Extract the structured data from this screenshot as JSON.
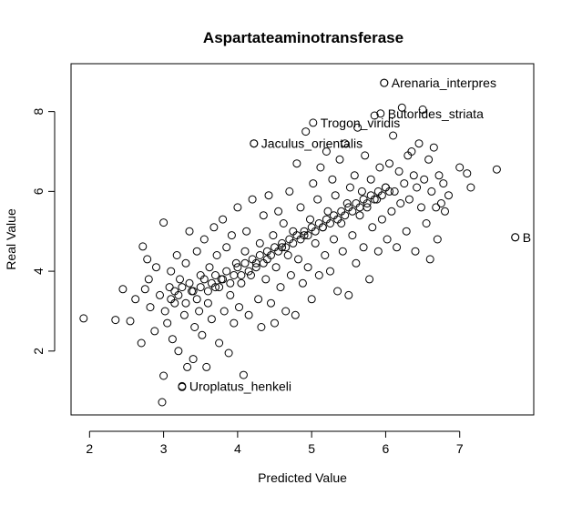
{
  "chart_data": {
    "type": "scatter",
    "title": "Aspartateaminotransferase",
    "xlabel": "Predicted Value",
    "ylabel": "Real Value",
    "xlim": [
      1.75,
      8.0
    ],
    "ylim": [
      0.4,
      9.2
    ],
    "xticks": [
      "2",
      "3",
      "4",
      "5",
      "6",
      "7"
    ],
    "yticks": [
      "2",
      "4",
      "6",
      "8"
    ],
    "grid": false,
    "legend": "none",
    "annotations": [
      {
        "label": "Arenaria_interpres",
        "x": 5.98,
        "y": 8.72
      },
      {
        "label": "Butorides_striata",
        "x": 5.93,
        "y": 7.95
      },
      {
        "label": "Trogon_viridis",
        "x": 5.02,
        "y": 7.72
      },
      {
        "label": "Jaculus_orientalis",
        "x": 4.22,
        "y": 7.2
      },
      {
        "label": "B",
        "x": 7.75,
        "y": 4.85
      },
      {
        "label": "Uroplatus_henkeli",
        "x": 3.25,
        "y": 1.12
      }
    ],
    "points": [
      [
        1.92,
        2.82
      ],
      [
        2.35,
        2.78
      ],
      [
        2.55,
        2.75
      ],
      [
        2.45,
        3.55
      ],
      [
        2.62,
        3.3
      ],
      [
        2.7,
        2.2
      ],
      [
        2.75,
        3.55
      ],
      [
        2.72,
        4.62
      ],
      [
        2.78,
        4.3
      ],
      [
        2.8,
        3.8
      ],
      [
        2.82,
        3.1
      ],
      [
        2.88,
        2.5
      ],
      [
        2.9,
        4.1
      ],
      [
        2.95,
        3.4
      ],
      [
        2.98,
        0.72
      ],
      [
        3.0,
        1.38
      ],
      [
        3.0,
        5.22
      ],
      [
        3.02,
        3.0
      ],
      [
        3.05,
        2.7
      ],
      [
        3.08,
        3.6
      ],
      [
        3.1,
        4.0
      ],
      [
        3.12,
        2.3
      ],
      [
        3.15,
        3.2
      ],
      [
        3.18,
        4.4
      ],
      [
        3.2,
        2.0
      ],
      [
        3.22,
        3.8
      ],
      [
        3.25,
        1.1
      ],
      [
        3.28,
        2.9
      ],
      [
        3.3,
        4.2
      ],
      [
        3.32,
        1.6
      ],
      [
        3.35,
        5.0
      ],
      [
        3.38,
        3.5
      ],
      [
        3.4,
        1.8
      ],
      [
        3.42,
        2.6
      ],
      [
        3.45,
        4.5
      ],
      [
        3.48,
        3.0
      ],
      [
        3.5,
        3.9
      ],
      [
        3.52,
        2.4
      ],
      [
        3.55,
        4.8
      ],
      [
        3.58,
        1.6
      ],
      [
        3.6,
        3.2
      ],
      [
        3.62,
        4.1
      ],
      [
        3.65,
        2.8
      ],
      [
        3.68,
        5.1
      ],
      [
        3.7,
        3.6
      ],
      [
        3.72,
        4.4
      ],
      [
        3.75,
        2.2
      ],
      [
        3.78,
        3.8
      ],
      [
        3.8,
        5.3
      ],
      [
        3.82,
        3.0
      ],
      [
        3.85,
        4.6
      ],
      [
        3.88,
        1.95
      ],
      [
        3.9,
        3.4
      ],
      [
        3.92,
        4.9
      ],
      [
        3.95,
        2.7
      ],
      [
        3.98,
        4.2
      ],
      [
        4.0,
        5.6
      ],
      [
        4.02,
        3.1
      ],
      [
        4.05,
        3.7
      ],
      [
        4.08,
        1.4
      ],
      [
        4.1,
        4.5
      ],
      [
        4.12,
        5.0
      ],
      [
        4.15,
        2.9
      ],
      [
        4.18,
        3.9
      ],
      [
        4.2,
        5.8
      ],
      [
        4.22,
        7.2
      ],
      [
        4.25,
        4.2
      ],
      [
        4.28,
        3.3
      ],
      [
        4.3,
        4.7
      ],
      [
        4.32,
        2.6
      ],
      [
        4.35,
        5.4
      ],
      [
        4.38,
        3.8
      ],
      [
        4.4,
        4.3
      ],
      [
        4.42,
        5.9
      ],
      [
        4.45,
        3.2
      ],
      [
        4.48,
        4.9
      ],
      [
        4.5,
        2.7
      ],
      [
        4.52,
        4.1
      ],
      [
        4.55,
        5.5
      ],
      [
        4.58,
        3.6
      ],
      [
        4.6,
        4.6
      ],
      [
        4.62,
        5.2
      ],
      [
        4.65,
        3.0
      ],
      [
        4.68,
        4.4
      ],
      [
        4.7,
        6.0
      ],
      [
        4.72,
        3.9
      ],
      [
        4.75,
        5.0
      ],
      [
        4.78,
        2.9
      ],
      [
        4.8,
        6.7
      ],
      [
        4.82,
        4.3
      ],
      [
        4.85,
        5.6
      ],
      [
        4.88,
        3.7
      ],
      [
        4.9,
        4.9
      ],
      [
        4.92,
        7.5
      ],
      [
        4.95,
        4.1
      ],
      [
        4.98,
        5.3
      ],
      [
        5.0,
        3.3
      ],
      [
        5.02,
        6.2
      ],
      [
        5.05,
        4.7
      ],
      [
        5.08,
        5.8
      ],
      [
        5.1,
        3.9
      ],
      [
        5.12,
        6.6
      ],
      [
        5.15,
        5.1
      ],
      [
        5.18,
        4.4
      ],
      [
        5.2,
        7.0
      ],
      [
        5.22,
        5.5
      ],
      [
        5.25,
        4.0
      ],
      [
        5.28,
        6.3
      ],
      [
        5.3,
        4.8
      ],
      [
        5.32,
        5.9
      ],
      [
        5.35,
        3.5
      ],
      [
        5.38,
        6.8
      ],
      [
        5.4,
        5.2
      ],
      [
        5.42,
        4.5
      ],
      [
        5.45,
        7.2
      ],
      [
        5.48,
        5.7
      ],
      [
        5.5,
        3.4
      ],
      [
        5.52,
        6.1
      ],
      [
        5.55,
        4.9
      ],
      [
        5.58,
        6.4
      ],
      [
        5.6,
        4.2
      ],
      [
        5.62,
        7.6
      ],
      [
        5.65,
        5.4
      ],
      [
        5.68,
        6.0
      ],
      [
        5.7,
        4.6
      ],
      [
        5.72,
        6.9
      ],
      [
        5.75,
        5.6
      ],
      [
        5.78,
        3.8
      ],
      [
        5.8,
        6.3
      ],
      [
        5.82,
        5.1
      ],
      [
        5.85,
        7.9
      ],
      [
        5.88,
        5.8
      ],
      [
        5.9,
        4.5
      ],
      [
        5.92,
        6.6
      ],
      [
        5.95,
        5.3
      ],
      [
        5.98,
        8.72
      ],
      [
        6.0,
        6.1
      ],
      [
        6.02,
        4.8
      ],
      [
        6.05,
        6.7
      ],
      [
        6.08,
        5.5
      ],
      [
        6.1,
        7.4
      ],
      [
        6.12,
        6.0
      ],
      [
        6.15,
        4.6
      ],
      [
        6.18,
        6.5
      ],
      [
        6.2,
        5.7
      ],
      [
        6.22,
        8.1
      ],
      [
        6.25,
        6.2
      ],
      [
        6.28,
        5.0
      ],
      [
        6.3,
        6.9
      ],
      [
        6.32,
        5.8
      ],
      [
        6.35,
        7.0
      ],
      [
        6.38,
        6.4
      ],
      [
        6.4,
        4.5
      ],
      [
        6.42,
        6.1
      ],
      [
        6.45,
        7.2
      ],
      [
        6.48,
        5.6
      ],
      [
        6.5,
        8.05
      ],
      [
        6.52,
        6.3
      ],
      [
        6.55,
        5.2
      ],
      [
        6.58,
        6.8
      ],
      [
        6.6,
        4.3
      ],
      [
        6.62,
        6.0
      ],
      [
        6.65,
        7.1
      ],
      [
        6.68,
        5.6
      ],
      [
        6.7,
        4.8
      ],
      [
        6.72,
        6.4
      ],
      [
        6.75,
        5.7
      ],
      [
        6.78,
        6.2
      ],
      [
        6.8,
        5.5
      ],
      [
        6.85,
        5.9
      ],
      [
        7.0,
        6.6
      ],
      [
        7.1,
        6.45
      ],
      [
        7.15,
        6.1
      ],
      [
        7.5,
        6.55
      ],
      [
        7.75,
        4.85
      ],
      [
        3.1,
        3.3
      ],
      [
        3.15,
        3.5
      ],
      [
        3.2,
        3.4
      ],
      [
        3.25,
        3.6
      ],
      [
        3.3,
        3.2
      ],
      [
        3.35,
        3.7
      ],
      [
        3.4,
        3.5
      ],
      [
        3.45,
        3.3
      ],
      [
        3.5,
        3.6
      ],
      [
        3.55,
        3.8
      ],
      [
        3.6,
        3.5
      ],
      [
        3.65,
        3.7
      ],
      [
        3.7,
        3.9
      ],
      [
        3.75,
        3.6
      ],
      [
        3.8,
        3.8
      ],
      [
        3.85,
        4.0
      ],
      [
        3.9,
        3.7
      ],
      [
        3.95,
        3.9
      ],
      [
        4.0,
        4.1
      ],
      [
        4.05,
        3.9
      ],
      [
        4.1,
        4.2
      ],
      [
        4.15,
        4.0
      ],
      [
        4.2,
        4.3
      ],
      [
        4.25,
        4.1
      ],
      [
        4.3,
        4.4
      ],
      [
        4.35,
        4.2
      ],
      [
        4.4,
        4.5
      ],
      [
        4.45,
        4.4
      ],
      [
        4.5,
        4.6
      ],
      [
        4.55,
        4.5
      ],
      [
        4.6,
        4.7
      ],
      [
        4.65,
        4.6
      ],
      [
        4.7,
        4.8
      ],
      [
        4.75,
        4.7
      ],
      [
        4.8,
        4.9
      ],
      [
        4.85,
        4.8
      ],
      [
        4.9,
        5.0
      ],
      [
        4.95,
        4.9
      ],
      [
        5.0,
        5.1
      ],
      [
        5.05,
        5.0
      ],
      [
        5.1,
        5.2
      ],
      [
        5.15,
        5.1
      ],
      [
        5.2,
        5.3
      ],
      [
        5.25,
        5.2
      ],
      [
        5.3,
        5.4
      ],
      [
        5.35,
        5.3
      ],
      [
        5.4,
        5.5
      ],
      [
        5.45,
        5.4
      ],
      [
        5.5,
        5.6
      ],
      [
        5.55,
        5.5
      ],
      [
        5.6,
        5.7
      ],
      [
        5.65,
        5.6
      ],
      [
        5.7,
        5.8
      ],
      [
        5.75,
        5.7
      ],
      [
        5.8,
        5.9
      ],
      [
        5.85,
        5.8
      ],
      [
        5.9,
        6.0
      ],
      [
        5.95,
        5.9
      ],
      [
        6.0,
        6.1
      ],
      [
        6.05,
        6.0
      ]
    ]
  }
}
